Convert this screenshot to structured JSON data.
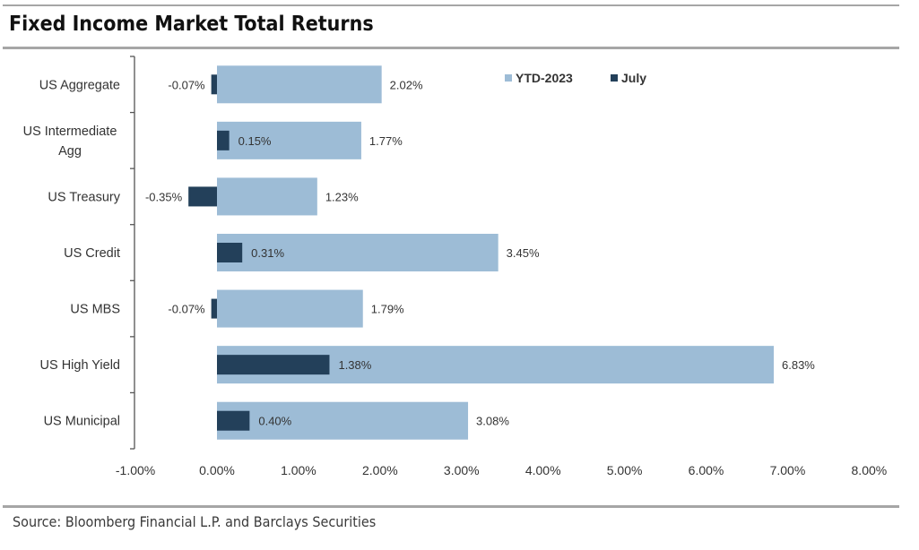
{
  "title": "Fixed Income Market Total Returns",
  "source": "Source: Bloomberg Financial L.P. and Barclays Securities",
  "colors": {
    "ytd": "#9dbcd6",
    "july": "#23405a",
    "axis": "#555555",
    "rule": "#a6a6a6"
  },
  "chart_data": {
    "type": "bar",
    "orientation": "horizontal",
    "categories": [
      "US Aggregate",
      "US Intermediate Agg",
      "US Treasury",
      "US Credit",
      "US MBS",
      "US High Yield",
      "US Municipal"
    ],
    "category_lines": [
      [
        "US Aggregate"
      ],
      [
        "US Intermediate",
        "Agg"
      ],
      [
        "US Treasury"
      ],
      [
        "US Credit"
      ],
      [
        "US MBS"
      ],
      [
        "US High Yield"
      ],
      [
        "US Municipal"
      ]
    ],
    "series": [
      {
        "name": "YTD-2023",
        "values": [
          2.02,
          1.77,
          1.23,
          3.45,
          1.79,
          6.83,
          3.08
        ],
        "labels": [
          "2.02%",
          "1.77%",
          "1.23%",
          "3.45%",
          "1.79%",
          "6.83%",
          "3.08%"
        ]
      },
      {
        "name": "July",
        "values": [
          -0.07,
          0.15,
          -0.35,
          0.31,
          -0.07,
          1.38,
          0.4
        ],
        "labels": [
          "-0.07%",
          "0.15%",
          "-0.35%",
          "0.31%",
          "-0.07%",
          "1.38%",
          "0.40%"
        ]
      }
    ],
    "xlim": [
      -1.0,
      8.0
    ],
    "xticks": [
      -1,
      0,
      1,
      2,
      3,
      4,
      5,
      6,
      7,
      8
    ],
    "xtick_labels": [
      "-1.00%",
      "0.00%",
      "1.00%",
      "2.00%",
      "3.00%",
      "4.00%",
      "5.00%",
      "6.00%",
      "7.00%",
      "8.00%"
    ],
    "legend_position": "top-right",
    "grid": false
  }
}
